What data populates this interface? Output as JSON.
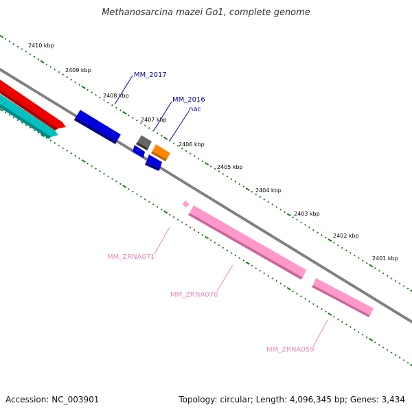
{
  "title": "Methanosarcina mazei Go1, complete genome",
  "footer": {
    "accession": "Accession: NC_003901",
    "topology": "Topology: circular; Length: 4,096,345 bp; Genes: 3,434"
  },
  "colors": {
    "backbone": "#808080",
    "ticks": "#1a7a1a",
    "blue_gene": "#0000dd",
    "blue_label": "#0000aa",
    "gray_gene": "#666666",
    "orange_gene": "#ff8800",
    "red_feature": "#ee0000",
    "cyan_feature": "#00c0c0",
    "pink_feature": "#ff99cc",
    "pink_label": "#ee88bb"
  },
  "ticks": {
    "outer_labels": [
      "2410 kbp",
      "2409 kbp",
      "2408 kbp",
      "2407 kbp",
      "2406 kbp",
      "2405 kbp",
      "2404 kbp",
      "2403 kbp",
      "2402 kbp",
      "2401 kbp"
    ]
  },
  "genes": [
    {
      "label": "MM_2017",
      "color_key": "blue_label"
    },
    {
      "label": "MM_2016",
      "color_key": "blue_label"
    },
    {
      "label": "nac",
      "color_key": "blue_label"
    },
    {
      "label": "MM_ZRNA071",
      "color_key": "pink_label"
    },
    {
      "label": "MM_ZRNA070",
      "color_key": "pink_label"
    },
    {
      "label": "MM_ZRNA059",
      "color_key": "pink_label"
    }
  ]
}
